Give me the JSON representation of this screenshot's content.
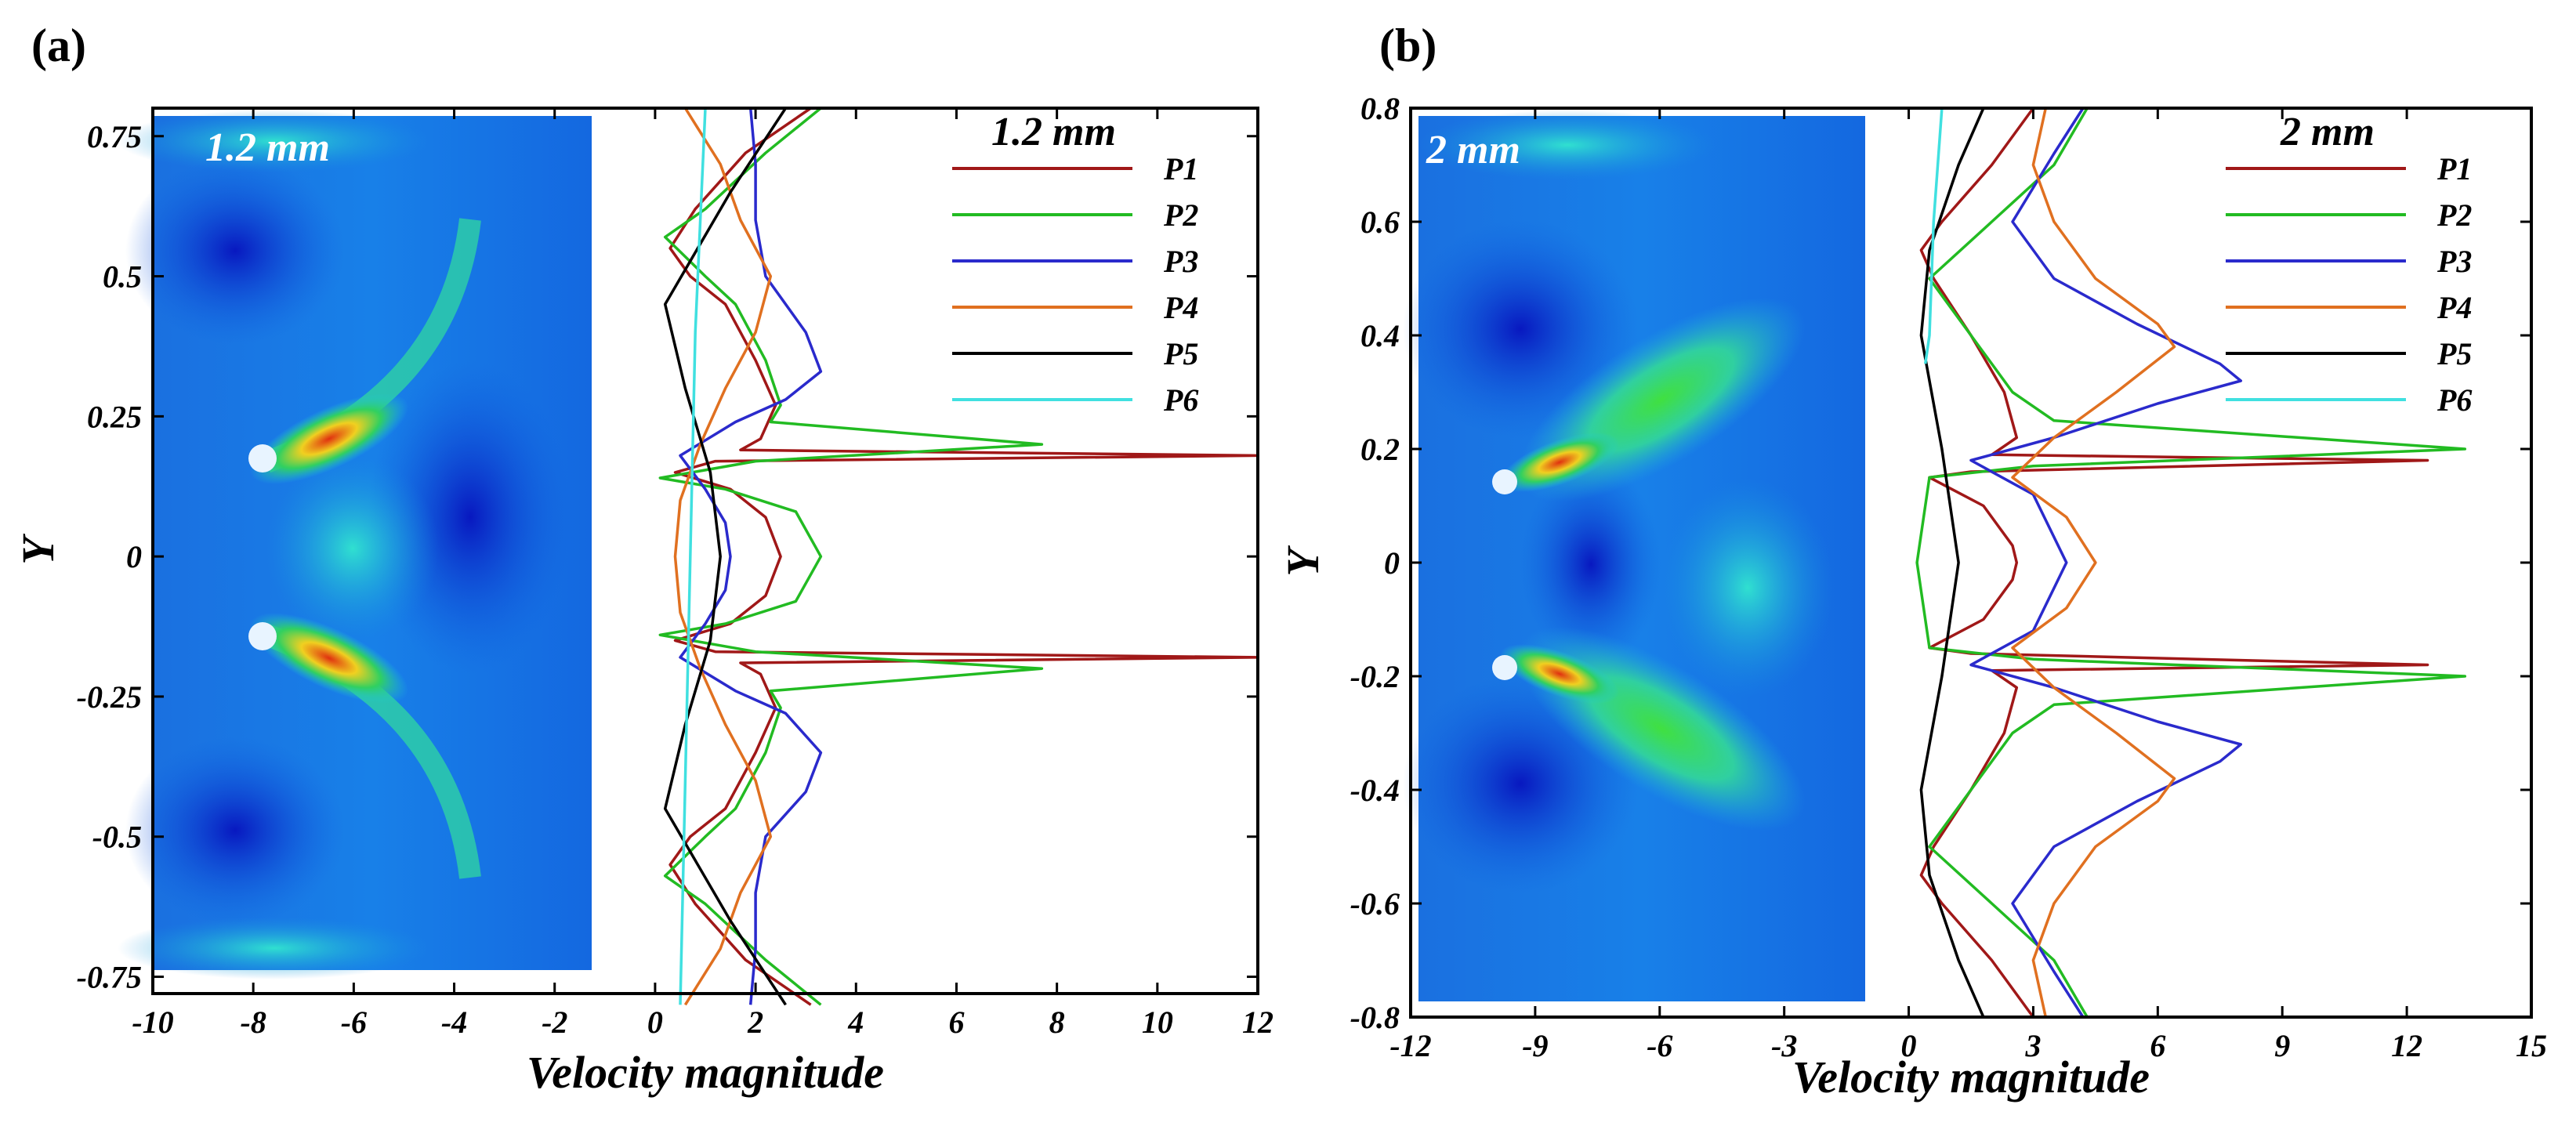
{
  "chart_data": [
    {
      "type": "line",
      "panel": "(a)",
      "title": "1.2 mm",
      "inset_label": "1.2 mm",
      "xlabel": "Velocity magnitude",
      "ylabel": "Y",
      "xlim": [
        -10,
        12
      ],
      "ylim": [
        -0.78,
        0.8
      ],
      "xticks": [
        -10,
        -8,
        -6,
        -4,
        -2,
        0,
        2,
        4,
        6,
        8,
        10,
        12
      ],
      "xtick_labels": [
        "-10",
        "-8",
        "-6",
        "-4",
        "-2",
        "0",
        "2",
        "4",
        "6",
        "8",
        "10",
        "12"
      ],
      "yticks": [
        0.75,
        0.5,
        0.25,
        0,
        -0.25,
        -0.5,
        -0.75
      ],
      "ytick_labels": [
        "0.75",
        "0.5",
        "0.25",
        "0",
        "-0.25",
        "-0.5",
        "-0.75"
      ],
      "contour_x_range": [
        -10,
        -1
      ],
      "legend": [
        "P1",
        "P2",
        "P3",
        "P4",
        "P5",
        "P6"
      ],
      "series": [
        {
          "name": "P1",
          "color": "#a01818",
          "points": [
            [
              3.1,
              0.8
            ],
            [
              1.8,
              0.72
            ],
            [
              0.8,
              0.62
            ],
            [
              0.3,
              0.55
            ],
            [
              0.7,
              0.5
            ],
            [
              1.4,
              0.45
            ],
            [
              2.0,
              0.35
            ],
            [
              2.4,
              0.27
            ],
            [
              2.1,
              0.21
            ],
            [
              1.7,
              0.19
            ],
            [
              12,
              0.18
            ],
            [
              1.2,
              0.17
            ],
            [
              0.4,
              0.15
            ],
            [
              1.5,
              0.12
            ],
            [
              2.2,
              0.07
            ],
            [
              2.5,
              0.0
            ],
            [
              2.2,
              -0.07
            ],
            [
              1.5,
              -0.12
            ],
            [
              0.4,
              -0.15
            ],
            [
              1.2,
              -0.17
            ],
            [
              12,
              -0.18
            ],
            [
              1.7,
              -0.19
            ],
            [
              2.1,
              -0.21
            ],
            [
              2.4,
              -0.27
            ],
            [
              2.0,
              -0.35
            ],
            [
              1.4,
              -0.45
            ],
            [
              0.7,
              -0.5
            ],
            [
              0.3,
              -0.55
            ],
            [
              0.8,
              -0.62
            ],
            [
              1.8,
              -0.72
            ],
            [
              3.1,
              -0.8
            ]
          ]
        },
        {
          "name": "P2",
          "color": "#22bb22",
          "points": [
            [
              3.3,
              0.8
            ],
            [
              2.2,
              0.72
            ],
            [
              1.0,
              0.62
            ],
            [
              0.2,
              0.57
            ],
            [
              1.0,
              0.5
            ],
            [
              1.6,
              0.45
            ],
            [
              2.2,
              0.35
            ],
            [
              2.5,
              0.27
            ],
            [
              2.3,
              0.24
            ],
            [
              7.7,
              0.2
            ],
            [
              2.0,
              0.17
            ],
            [
              0.1,
              0.14
            ],
            [
              1.4,
              0.12
            ],
            [
              2.8,
              0.08
            ],
            [
              3.3,
              0.0
            ],
            [
              2.8,
              -0.08
            ],
            [
              1.4,
              -0.12
            ],
            [
              0.1,
              -0.14
            ],
            [
              2.0,
              -0.17
            ],
            [
              7.7,
              -0.2
            ],
            [
              2.3,
              -0.24
            ],
            [
              2.5,
              -0.27
            ],
            [
              2.2,
              -0.35
            ],
            [
              1.6,
              -0.45
            ],
            [
              1.0,
              -0.5
            ],
            [
              0.2,
              -0.57
            ],
            [
              1.0,
              -0.62
            ],
            [
              2.2,
              -0.72
            ],
            [
              3.3,
              -0.8
            ]
          ]
        },
        {
          "name": "P3",
          "color": "#2a2acc",
          "points": [
            [
              1.9,
              0.8
            ],
            [
              2.0,
              0.7
            ],
            [
              2.0,
              0.6
            ],
            [
              2.2,
              0.5
            ],
            [
              3.0,
              0.4
            ],
            [
              3.3,
              0.33
            ],
            [
              2.6,
              0.28
            ],
            [
              1.6,
              0.24
            ],
            [
              0.5,
              0.18
            ],
            [
              1.0,
              0.12
            ],
            [
              1.4,
              0.06
            ],
            [
              1.5,
              0.0
            ],
            [
              1.4,
              -0.06
            ],
            [
              1.0,
              -0.12
            ],
            [
              0.5,
              -0.18
            ],
            [
              1.6,
              -0.24
            ],
            [
              2.6,
              -0.28
            ],
            [
              3.3,
              -0.35
            ],
            [
              3.0,
              -0.42
            ],
            [
              2.2,
              -0.5
            ],
            [
              2.0,
              -0.6
            ],
            [
              2.0,
              -0.7
            ],
            [
              1.9,
              -0.8
            ]
          ]
        },
        {
          "name": "P4",
          "color": "#e07020",
          "points": [
            [
              0.6,
              0.8
            ],
            [
              1.3,
              0.7
            ],
            [
              1.7,
              0.6
            ],
            [
              2.3,
              0.5
            ],
            [
              2.0,
              0.4
            ],
            [
              1.4,
              0.3
            ],
            [
              0.9,
              0.2
            ],
            [
              0.5,
              0.1
            ],
            [
              0.4,
              0.0
            ],
            [
              0.5,
              -0.1
            ],
            [
              0.9,
              -0.2
            ],
            [
              1.4,
              -0.3
            ],
            [
              2.0,
              -0.4
            ],
            [
              2.3,
              -0.5
            ],
            [
              1.7,
              -0.6
            ],
            [
              1.3,
              -0.7
            ],
            [
              0.6,
              -0.8
            ]
          ]
        },
        {
          "name": "P5",
          "color": "#000000",
          "points": [
            [
              2.6,
              0.8
            ],
            [
              1.5,
              0.65
            ],
            [
              0.2,
              0.45
            ],
            [
              0.6,
              0.3
            ],
            [
              1.1,
              0.15
            ],
            [
              1.3,
              0.0
            ],
            [
              1.1,
              -0.15
            ],
            [
              0.6,
              -0.3
            ],
            [
              0.2,
              -0.45
            ],
            [
              1.5,
              -0.65
            ],
            [
              2.6,
              -0.8
            ]
          ]
        },
        {
          "name": "P6",
          "color": "#40e0e0",
          "points": [
            [
              1.0,
              0.8
            ],
            [
              0.8,
              0.4
            ],
            [
              0.7,
              0.0
            ],
            [
              0.6,
              -0.4
            ],
            [
              0.5,
              -0.8
            ]
          ]
        }
      ]
    },
    {
      "type": "line",
      "panel": "(b)",
      "title": "2 mm",
      "inset_label": "2 mm",
      "xlabel": "Velocity magnitude",
      "ylabel": "Y",
      "xlim": [
        -12,
        15
      ],
      "ylim": [
        -0.8,
        0.8
      ],
      "xticks": [
        -12,
        -9,
        -6,
        -3,
        0,
        3,
        6,
        9,
        12,
        15
      ],
      "xtick_labels": [
        "-12",
        "-9",
        "-6",
        "-3",
        "0",
        "3",
        "6",
        "9",
        "12",
        "15"
      ],
      "yticks": [
        0.8,
        0.6,
        0.4,
        0.2,
        0,
        -0.2,
        -0.4,
        -0.6,
        -0.8
      ],
      "ytick_labels": [
        "0.8",
        "0.6",
        "0.4",
        "0.2",
        "0",
        "-0.2",
        "-0.4",
        "-0.6",
        "-0.8"
      ],
      "contour_x_range": [
        -12,
        -0.5
      ],
      "legend": [
        "P1",
        "P2",
        "P3",
        "P4",
        "P5",
        "P6"
      ],
      "series": [
        {
          "name": "P1",
          "color": "#a01818",
          "points": [
            [
              3.0,
              0.8
            ],
            [
              2.0,
              0.7
            ],
            [
              0.8,
              0.6
            ],
            [
              0.3,
              0.55
            ],
            [
              0.6,
              0.5
            ],
            [
              1.5,
              0.4
            ],
            [
              2.3,
              0.3
            ],
            [
              2.6,
              0.22
            ],
            [
              2.0,
              0.19
            ],
            [
              12.5,
              0.18
            ],
            [
              1.5,
              0.16
            ],
            [
              0.5,
              0.15
            ],
            [
              1.8,
              0.1
            ],
            [
              2.5,
              0.03
            ],
            [
              2.6,
              0.0
            ],
            [
              2.5,
              -0.03
            ],
            [
              1.8,
              -0.1
            ],
            [
              0.5,
              -0.15
            ],
            [
              1.5,
              -0.16
            ],
            [
              12.5,
              -0.18
            ],
            [
              2.0,
              -0.19
            ],
            [
              2.6,
              -0.22
            ],
            [
              2.3,
              -0.3
            ],
            [
              1.5,
              -0.4
            ],
            [
              0.6,
              -0.5
            ],
            [
              0.3,
              -0.55
            ],
            [
              0.8,
              -0.6
            ],
            [
              2.0,
              -0.7
            ],
            [
              3.0,
              -0.8
            ]
          ]
        },
        {
          "name": "P2",
          "color": "#22bb22",
          "points": [
            [
              4.3,
              0.8
            ],
            [
              3.5,
              0.7
            ],
            [
              2.0,
              0.6
            ],
            [
              0.5,
              0.5
            ],
            [
              1.5,
              0.4
            ],
            [
              2.5,
              0.3
            ],
            [
              3.5,
              0.25
            ],
            [
              13.4,
              0.2
            ],
            [
              3.0,
              0.17
            ],
            [
              0.5,
              0.15
            ],
            [
              0.2,
              0.0
            ],
            [
              0.5,
              -0.15
            ],
            [
              3.0,
              -0.17
            ],
            [
              13.4,
              -0.2
            ],
            [
              3.5,
              -0.25
            ],
            [
              2.5,
              -0.3
            ],
            [
              1.5,
              -0.4
            ],
            [
              0.5,
              -0.5
            ],
            [
              2.0,
              -0.6
            ],
            [
              3.5,
              -0.7
            ],
            [
              4.3,
              -0.8
            ]
          ]
        },
        {
          "name": "P3",
          "color": "#2a2acc",
          "points": [
            [
              4.2,
              0.8
            ],
            [
              3.5,
              0.72
            ],
            [
              2.5,
              0.6
            ],
            [
              3.5,
              0.5
            ],
            [
              5.5,
              0.42
            ],
            [
              7.5,
              0.35
            ],
            [
              8.0,
              0.32
            ],
            [
              6.0,
              0.28
            ],
            [
              3.5,
              0.22
            ],
            [
              1.5,
              0.18
            ],
            [
              3.0,
              0.12
            ],
            [
              3.8,
              0.0
            ],
            [
              3.0,
              -0.12
            ],
            [
              1.5,
              -0.18
            ],
            [
              3.5,
              -0.22
            ],
            [
              6.0,
              -0.28
            ],
            [
              8.0,
              -0.32
            ],
            [
              7.5,
              -0.35
            ],
            [
              5.5,
              -0.42
            ],
            [
              3.5,
              -0.5
            ],
            [
              2.5,
              -0.6
            ],
            [
              3.5,
              -0.72
            ],
            [
              4.2,
              -0.8
            ]
          ]
        },
        {
          "name": "P4",
          "color": "#e07020",
          "points": [
            [
              3.3,
              0.8
            ],
            [
              3.0,
              0.7
            ],
            [
              3.5,
              0.6
            ],
            [
              4.5,
              0.5
            ],
            [
              6.0,
              0.42
            ],
            [
              6.4,
              0.38
            ],
            [
              5.0,
              0.3
            ],
            [
              3.5,
              0.22
            ],
            [
              2.5,
              0.15
            ],
            [
              3.8,
              0.08
            ],
            [
              4.5,
              0.0
            ],
            [
              3.8,
              -0.08
            ],
            [
              2.5,
              -0.15
            ],
            [
              3.5,
              -0.22
            ],
            [
              5.0,
              -0.3
            ],
            [
              6.4,
              -0.38
            ],
            [
              6.0,
              -0.42
            ],
            [
              4.5,
              -0.5
            ],
            [
              3.5,
              -0.6
            ],
            [
              3.0,
              -0.7
            ],
            [
              3.3,
              -0.8
            ]
          ]
        },
        {
          "name": "P5",
          "color": "#000000",
          "points": [
            [
              1.8,
              0.8
            ],
            [
              1.2,
              0.7
            ],
            [
              0.5,
              0.55
            ],
            [
              0.3,
              0.4
            ],
            [
              0.8,
              0.2
            ],
            [
              1.2,
              0.0
            ],
            [
              0.8,
              -0.2
            ],
            [
              0.3,
              -0.4
            ],
            [
              0.5,
              -0.55
            ],
            [
              1.2,
              -0.7
            ],
            [
              1.8,
              -0.8
            ]
          ]
        },
        {
          "name": "P6",
          "color": "#40e0e0",
          "points": [
            [
              0.8,
              0.8
            ],
            [
              0.6,
              0.6
            ],
            [
              0.5,
              0.4
            ],
            [
              0.4,
              0.35
            ]
          ]
        }
      ]
    }
  ]
}
